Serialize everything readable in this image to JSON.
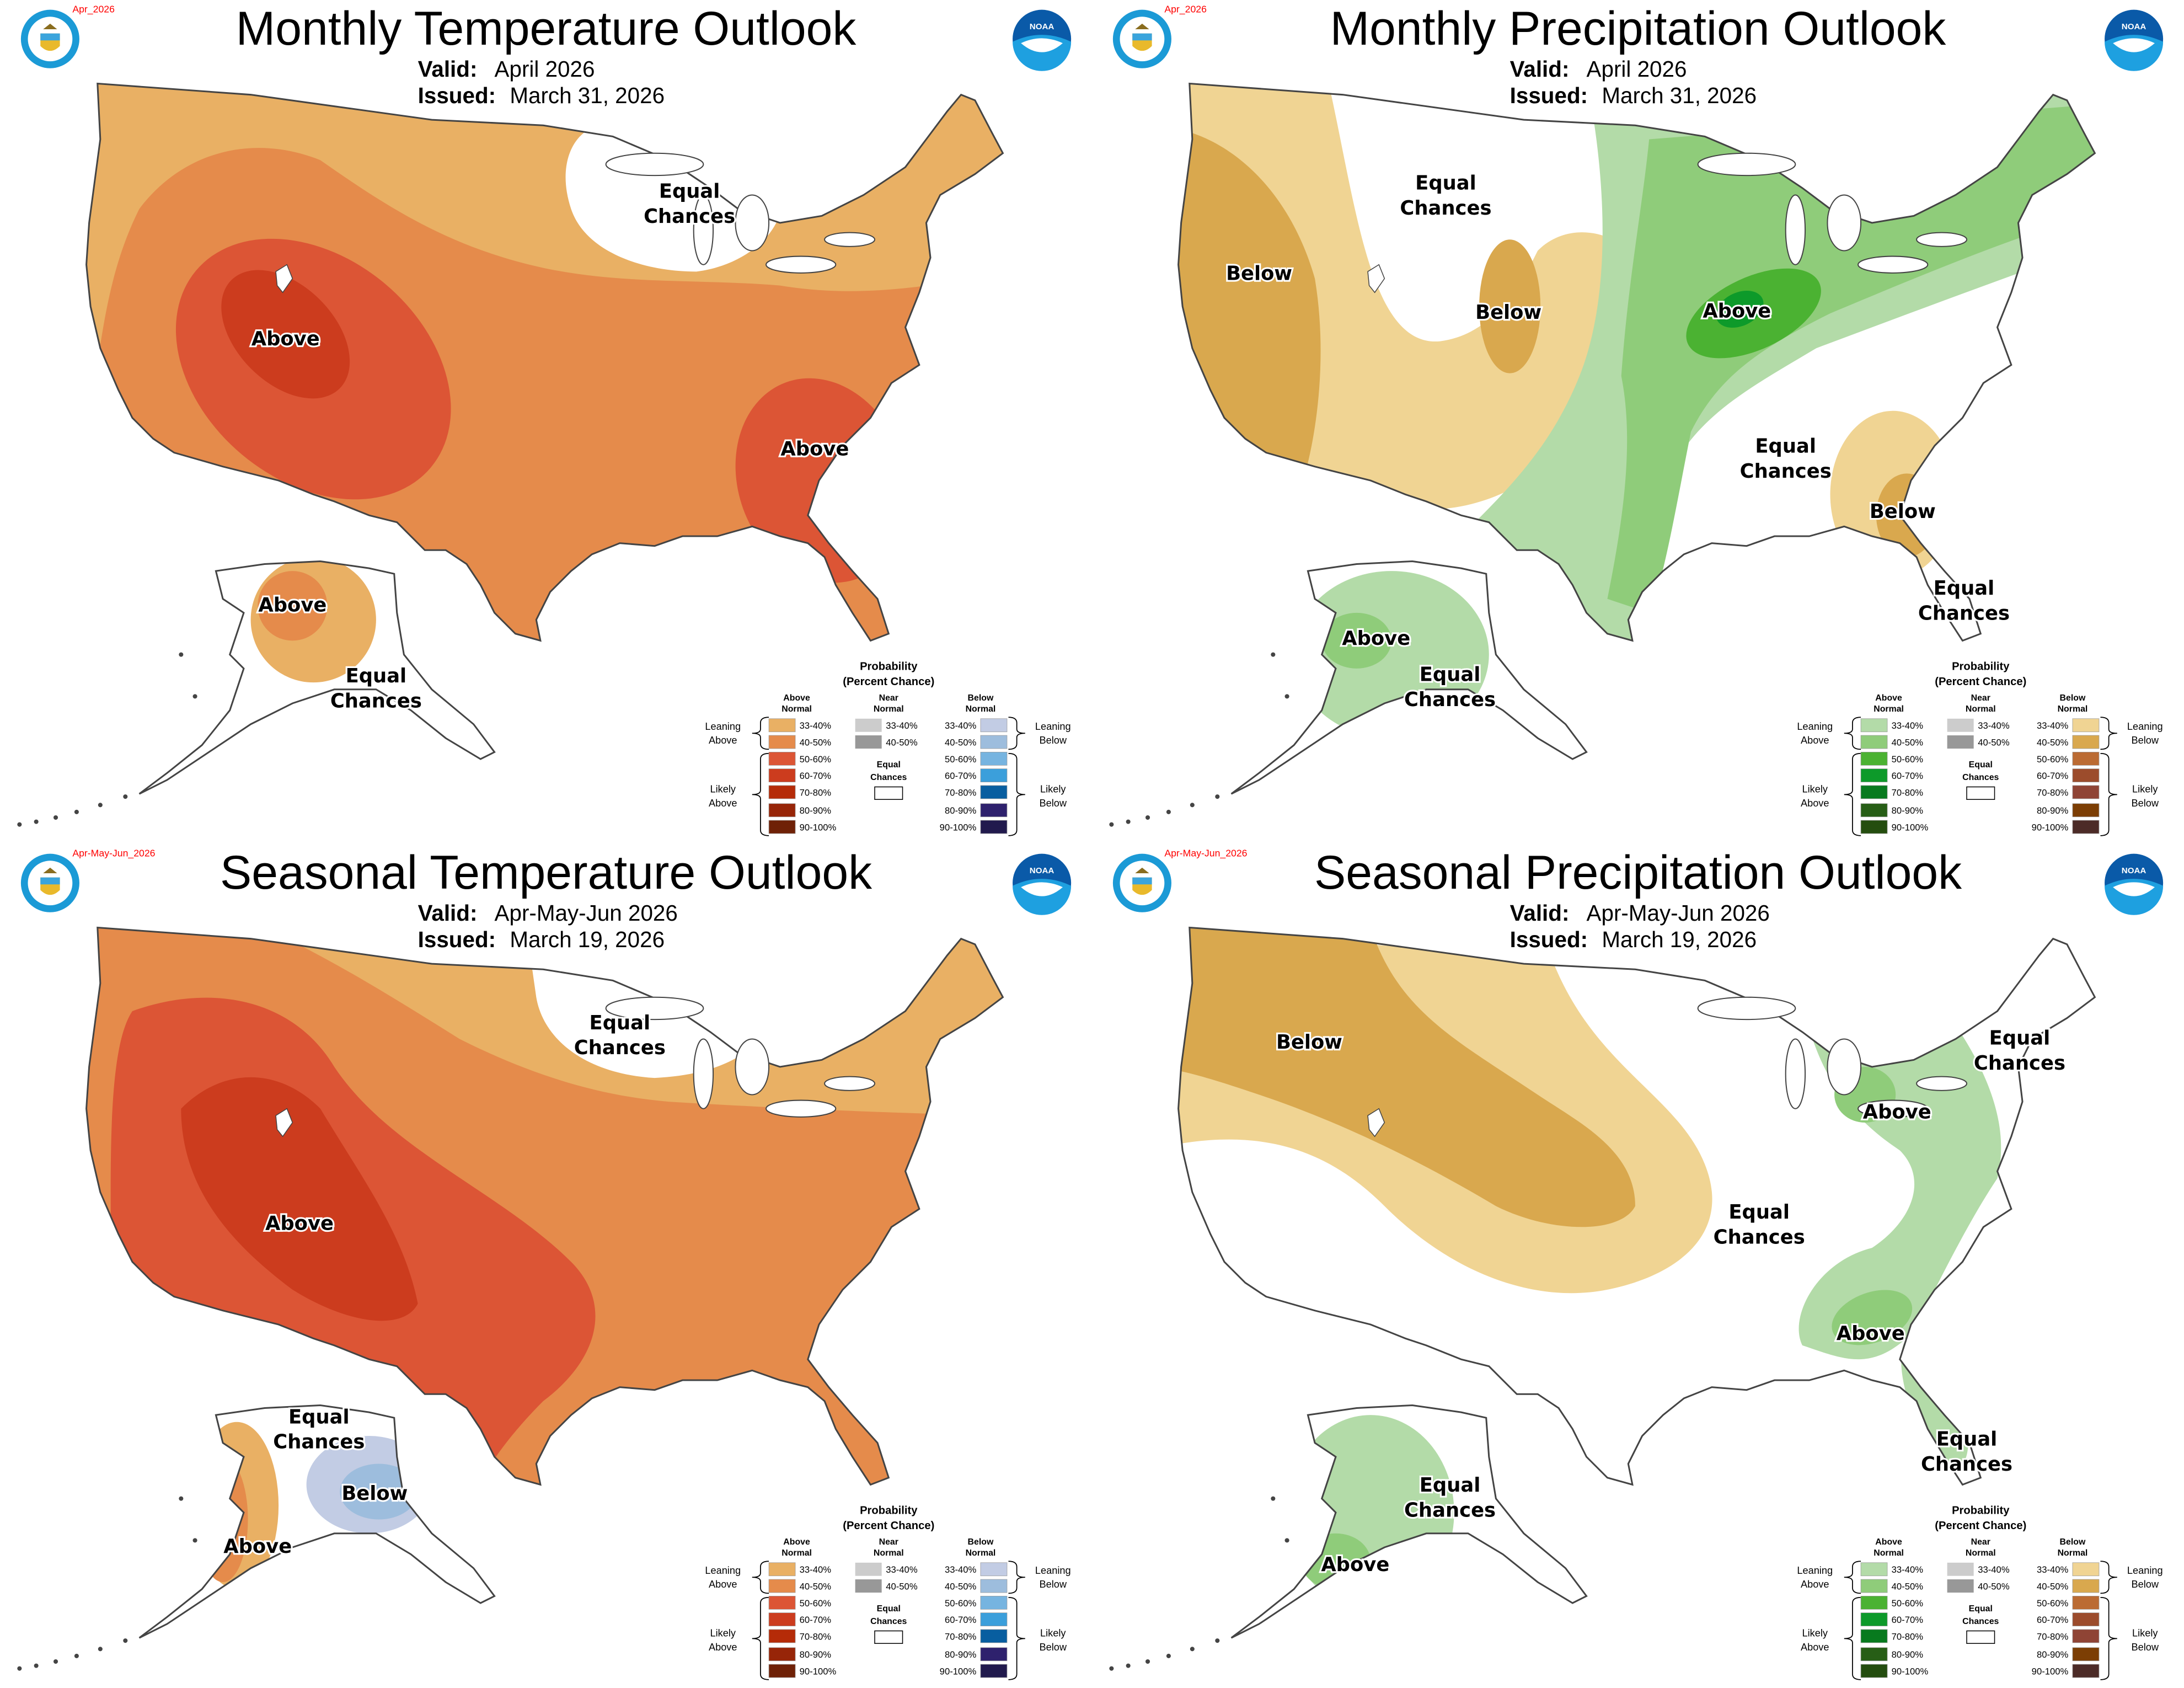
{
  "legend": {
    "title": "Probability",
    "subtitle": "(Percent Chance)",
    "above_header": [
      "Above",
      "Normal"
    ],
    "near_header": [
      "Near",
      "Normal"
    ],
    "below_header": [
      "Below",
      "Normal"
    ],
    "ranges": [
      "33-40%",
      "40-50%",
      "50-60%",
      "60-70%",
      "70-80%",
      "80-90%",
      "90-100%"
    ],
    "near_ranges": [
      "33-40%",
      "40-50%"
    ],
    "near_colors": [
      "#cccccc",
      "#989898"
    ],
    "equal_chances": [
      "Equal",
      "Chances"
    ],
    "leaning_above": [
      "Leaning",
      "Above"
    ],
    "likely_above": [
      "Likely",
      "Above"
    ],
    "leaning_below": [
      "Leaning",
      "Below"
    ],
    "likely_below": [
      "Likely",
      "Below"
    ]
  },
  "logos": {
    "doc_seal": "DEPARTMENT OF COMMERCE · UNITED STATES OF AMERICA",
    "noaa": "NOAA"
  },
  "colors": {
    "outline": "#444444",
    "equal_chances": "#ffffff"
  },
  "panels": [
    {
      "date_tag": "Apr_2026",
      "title": "Monthly Temperature Outlook",
      "valid_label": "Valid:",
      "valid_value": "April 2026",
      "issued_label": "Issued:",
      "issued_value": "March 31, 2026",
      "variable": "temperature",
      "above_colors": [
        "#e9b064",
        "#e58b4b",
        "#dc5535",
        "#cc3c1e",
        "#b52b08",
        "#972508",
        "#6f2107"
      ],
      "below_colors": [
        "#c2cce4",
        "#9dbddd",
        "#76b4e0",
        "#3b9fdb",
        "#085ea0",
        "#2e216d",
        "#211a4d"
      ],
      "map_labels": [
        [
          "Equal",
          "Chances"
        ],
        [
          "Above"
        ],
        [
          "Above"
        ],
        [
          "Above"
        ],
        [
          "Equal",
          "Chances"
        ]
      ]
    },
    {
      "date_tag": "Apr_2026",
      "title": "Monthly Precipitation Outlook",
      "valid_label": "Valid:",
      "valid_value": "April 2026",
      "issued_label": "Issued:",
      "issued_value": "March 31, 2026",
      "variable": "precipitation",
      "above_colors": [
        "#b3dba8",
        "#8fcc7a",
        "#4bb232",
        "#0d9a2a",
        "#087a1e",
        "#275e16",
        "#244d0f"
      ],
      "below_colors": [
        "#f0d493",
        "#d9a84e",
        "#bb6b33",
        "#9c4c2c",
        "#8f4435",
        "#7c3e04",
        "#4c2b27"
      ],
      "map_labels": [
        [
          "Equal",
          "Chances"
        ],
        [
          "Below"
        ],
        [
          "Below"
        ],
        [
          "Above"
        ],
        [
          "Equal",
          "Chances"
        ],
        [
          "Below"
        ],
        [
          "Equal",
          "Chances"
        ],
        [
          "Above"
        ],
        [
          "Equal",
          "Chances"
        ]
      ]
    },
    {
      "date_tag": "Apr-May-Jun_2026",
      "title": "Seasonal Temperature Outlook",
      "valid_label": "Valid:",
      "valid_value": "Apr-May-Jun 2026",
      "issued_label": "Issued:",
      "issued_value": "March 19, 2026",
      "variable": "temperature",
      "above_colors": [
        "#e9b064",
        "#e58b4b",
        "#dc5535",
        "#cc3c1e",
        "#b52b08",
        "#972508",
        "#6f2107"
      ],
      "below_colors": [
        "#c2cce4",
        "#9dbddd",
        "#76b4e0",
        "#3b9fdb",
        "#085ea0",
        "#2e216d",
        "#211a4d"
      ],
      "map_labels": [
        [
          "Equal",
          "Chances"
        ],
        [
          "Above"
        ],
        [
          "Equal",
          "Chances"
        ],
        [
          "Below"
        ],
        [
          "Above"
        ]
      ]
    },
    {
      "date_tag": "Apr-May-Jun_2026",
      "title": "Seasonal Precipitation Outlook",
      "valid_label": "Valid:",
      "valid_value": "Apr-May-Jun 2026",
      "issued_label": "Issued:",
      "issued_value": "March 19, 2026",
      "variable": "precipitation",
      "above_colors": [
        "#b3dba8",
        "#8fcc7a",
        "#4bb232",
        "#0d9a2a",
        "#087a1e",
        "#275e16",
        "#244d0f"
      ],
      "below_colors": [
        "#f0d493",
        "#d9a84e",
        "#bb6b33",
        "#9c4c2c",
        "#8f4435",
        "#7c3e04",
        "#4c2b27"
      ],
      "map_labels": [
        [
          "Below"
        ],
        [
          "Equal",
          "Chances"
        ],
        [
          "Above"
        ],
        [
          "Equal",
          "Chances"
        ],
        [
          "Above"
        ],
        [
          "Equal",
          "Chances"
        ],
        [
          "Equal",
          "Chances"
        ],
        [
          "Above"
        ]
      ]
    }
  ]
}
